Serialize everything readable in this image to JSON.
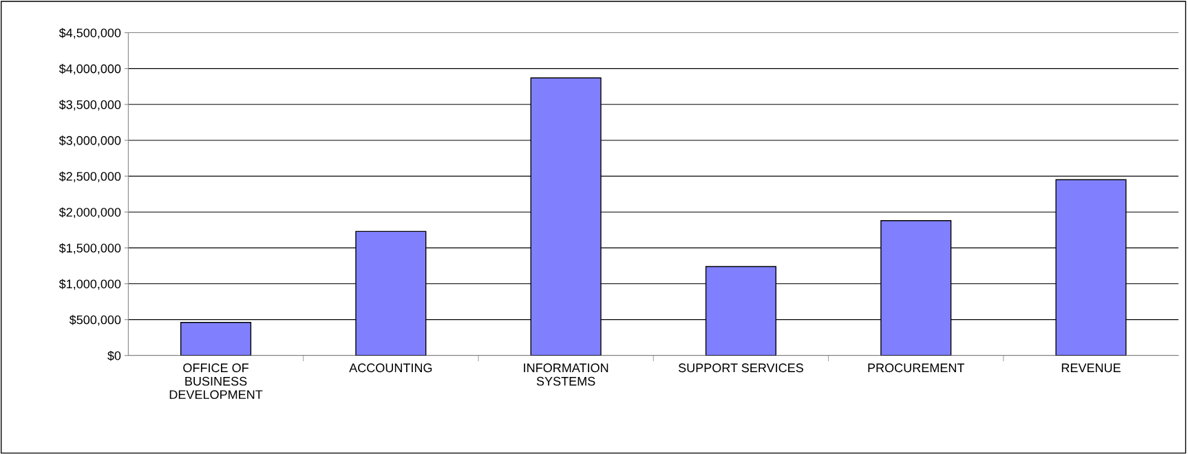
{
  "chart_data": {
    "type": "bar",
    "categories": [
      "OFFICE OF\nBUSINESS\nDEVELOPMENT",
      "ACCOUNTING",
      "INFORMATION\nSYSTEMS",
      "SUPPORT SERVICES",
      "PROCUREMENT",
      "REVENUE"
    ],
    "values": [
      460000,
      1730000,
      3870000,
      1240000,
      1880000,
      2450000
    ],
    "color": "#8080ff",
    "ylim": [
      0,
      4500000
    ],
    "yticks": [
      {
        "value": 0,
        "label": "$0"
      },
      {
        "value": 500000,
        "label": "$500,000"
      },
      {
        "value": 1000000,
        "label": "$1,000,000"
      },
      {
        "value": 1500000,
        "label": "$1,500,000"
      },
      {
        "value": 2000000,
        "label": "$2,000,000"
      },
      {
        "value": 2500000,
        "label": "$2,500,000"
      },
      {
        "value": 3000000,
        "label": "$3,000,000"
      },
      {
        "value": 3500000,
        "label": "$3,500,000"
      },
      {
        "value": 4000000,
        "label": "$4,000,000"
      },
      {
        "value": 4500000,
        "label": "$4,500,000"
      }
    ],
    "grid": "y",
    "legend": false
  }
}
